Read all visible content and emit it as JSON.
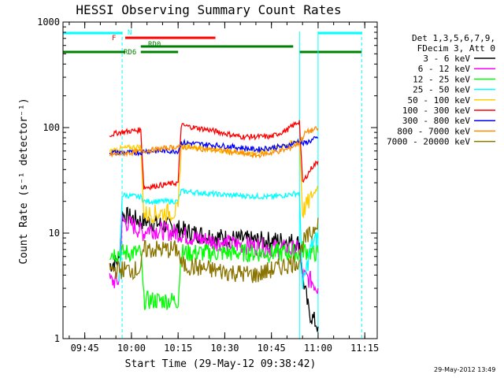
{
  "chart_data": {
    "type": "line",
    "title": "HESSI Observing Summary Count Rates",
    "xlabel": "Start Time (29-May-12 09:38:42)",
    "ylabel": "Count Rate (s⁻¹ detector⁻¹)",
    "y_scale": "log",
    "ylim": [
      1,
      1000
    ],
    "xlim": [
      "09:38",
      "11:19"
    ],
    "x_ticks": [
      "09:45",
      "10:00",
      "10:15",
      "10:30",
      "10:45",
      "11:00",
      "11:15"
    ],
    "y_ticks": [
      "1",
      "10",
      "100",
      "1000"
    ],
    "legend_header": [
      "Det 1,3,5,6,7,9,",
      "FDecim 3, Att 0"
    ],
    "legend_position": "right",
    "series": [
      {
        "name": "3 - 6 keV",
        "color": "#000000",
        "x": [
          "09:53",
          "09:56",
          "09:57",
          "10:00",
          "10:03",
          "10:05",
          "10:10",
          "10:15",
          "10:20",
          "10:30",
          "10:40",
          "10:50",
          "10:54",
          "10:55",
          "10:57",
          "10:58",
          "11:00"
        ],
        "y": [
          5,
          5.5,
          15,
          14,
          13,
          13,
          12,
          11,
          10,
          9,
          8.5,
          8.5,
          8,
          4,
          1.8,
          1.6,
          1.3
        ]
      },
      {
        "name": "6 - 12 keV",
        "color": "#ff00ff",
        "x": [
          "09:53",
          "09:56",
          "09:57",
          "10:00",
          "10:04",
          "10:05",
          "10:15",
          "10:20",
          "10:30",
          "10:40",
          "10:50",
          "10:54",
          "10:55",
          "10:58",
          "11:00"
        ],
        "y": [
          3.5,
          3.5,
          13,
          12,
          10,
          11,
          10,
          9,
          8,
          7.5,
          7,
          7,
          4,
          3.5,
          3
        ]
      },
      {
        "name": "12 - 25 keV",
        "color": "#00ff00",
        "x": [
          "09:53",
          "10:03",
          "10:04",
          "10:15",
          "10:16",
          "10:30",
          "10:45",
          "10:54",
          "10:55",
          "10:58",
          "11:00"
        ],
        "y": [
          6.5,
          6.5,
          2.3,
          2.3,
          6.5,
          6.5,
          6.5,
          6.5,
          7,
          6.5,
          6.5
        ]
      },
      {
        "name": "25 - 50 keV",
        "color": "#00ffff",
        "x": [
          "09:56",
          "09:57",
          "10:03",
          "10:04",
          "10:15",
          "10:16",
          "10:30",
          "10:45",
          "10:54",
          "10:55",
          "10:58",
          "11:00"
        ],
        "y": [
          3,
          23,
          22,
          20,
          20,
          25,
          23,
          22,
          24,
          3,
          8,
          9
        ]
      },
      {
        "name": "50 - 100 keV",
        "color": "#ffcc00",
        "x": [
          "09:53",
          "09:56",
          "10:03",
          "10:04",
          "10:15",
          "10:16",
          "10:30",
          "10:40",
          "10:54",
          "10:55",
          "10:58",
          "11:00"
        ],
        "y": [
          60,
          63,
          66,
          15,
          16,
          68,
          60,
          57,
          75,
          16,
          22,
          28
        ]
      },
      {
        "name": "100 - 300 keV",
        "color": "#ff0000",
        "x": [
          "09:53",
          "09:56",
          "10:03",
          "10:04",
          "10:15",
          "10:16",
          "10:25",
          "10:35",
          "10:45",
          "10:50",
          "10:54",
          "10:55",
          "10:58",
          "11:00"
        ],
        "y": [
          85,
          90,
          95,
          27,
          30,
          105,
          95,
          82,
          82,
          95,
          115,
          30,
          42,
          48
        ]
      },
      {
        "name": "300 - 800 keV",
        "color": "#0000ff",
        "x": [
          "09:53",
          "10:03",
          "10:04",
          "10:15",
          "10:16",
          "10:30",
          "10:40",
          "10:50",
          "10:54",
          "10:55",
          "11:00"
        ],
        "y": [
          58,
          58,
          60,
          60,
          72,
          67,
          62,
          67,
          75,
          70,
          80
        ]
      },
      {
        "name": "800 - 7000 keV",
        "color": "#ff8c00",
        "x": [
          "09:53",
          "10:00",
          "10:15",
          "10:30",
          "10:40",
          "10:50",
          "10:54",
          "10:56",
          "11:00"
        ],
        "y": [
          55,
          58,
          66,
          60,
          54,
          62,
          72,
          90,
          98
        ]
      },
      {
        "name": "7000 - 20000 keV",
        "color": "#8b7500",
        "x": [
          "09:53",
          "10:03",
          "10:04",
          "10:15",
          "10:16",
          "10:25",
          "10:40",
          "10:50",
          "10:54",
          "10:55",
          "10:58",
          "11:00"
        ],
        "y": [
          4.5,
          4.5,
          7,
          7,
          5,
          4.5,
          4,
          5,
          5.5,
          8,
          10,
          14
        ]
      }
    ],
    "state_bars": [
      {
        "label": "N",
        "color": "#00ffff",
        "segments": [
          [
            "09:38",
            "09:57"
          ],
          [
            "11:00",
            "11:14"
          ]
        ]
      },
      {
        "label": "F",
        "color": "#ff0000",
        "segments": [
          [
            "09:58",
            "10:27"
          ]
        ]
      },
      {
        "label": "RD0",
        "color": "#008000",
        "segments": [
          [
            "10:03",
            "10:52"
          ]
        ]
      },
      {
        "label": "RD6",
        "color": "#008000",
        "segments": [
          [
            "09:38",
            "09:58"
          ],
          [
            "10:03",
            "10:15"
          ],
          [
            "10:54",
            "11:14"
          ]
        ]
      }
    ],
    "vertical_lines": {
      "dashed": [
        "09:57",
        "11:14"
      ],
      "solid": [
        "09:38",
        "10:54",
        "11:00"
      ]
    }
  },
  "stamp": "29-May-2012 13:49"
}
